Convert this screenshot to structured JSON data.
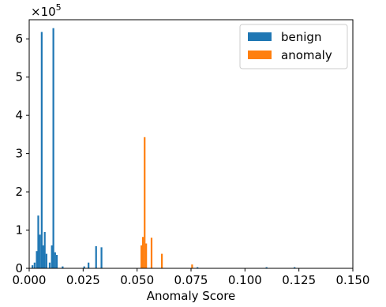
{
  "chart_data": {
    "type": "bar",
    "xlabel": "Anomaly Score",
    "ylabel": "",
    "xlim": [
      0.0,
      0.15
    ],
    "ylim": [
      0,
      650000
    ],
    "xticks": [
      0.0,
      0.025,
      0.05,
      0.075,
      0.1,
      0.125,
      0.15
    ],
    "xtick_labels": [
      "0.000",
      "0.025",
      "0.050",
      "0.075",
      "0.100",
      "0.125",
      "0.150"
    ],
    "yticks": [
      0,
      100000,
      200000,
      300000,
      400000,
      500000,
      600000
    ],
    "ytick_labels": [
      "0",
      "1",
      "2",
      "3",
      "4",
      "5",
      "6"
    ],
    "y_multiplier": "×10",
    "y_multiplier_exp": "5",
    "grid": false,
    "legend_position": "top-right",
    "series": [
      {
        "name": "benign",
        "color": "#1f77b4",
        "bins": [
          {
            "x": 0.0015,
            "y": 8000
          },
          {
            "x": 0.0025,
            "y": 15000
          },
          {
            "x": 0.0035,
            "y": 45000
          },
          {
            "x": 0.0042,
            "y": 138000
          },
          {
            "x": 0.005,
            "y": 88000
          },
          {
            "x": 0.0058,
            "y": 618000
          },
          {
            "x": 0.0065,
            "y": 60000
          },
          {
            "x": 0.0072,
            "y": 95000
          },
          {
            "x": 0.008,
            "y": 38000
          },
          {
            "x": 0.0095,
            "y": 15000
          },
          {
            "x": 0.0105,
            "y": 60000
          },
          {
            "x": 0.0112,
            "y": 628000
          },
          {
            "x": 0.012,
            "y": 42000
          },
          {
            "x": 0.0128,
            "y": 35000
          },
          {
            "x": 0.0155,
            "y": 5000
          },
          {
            "x": 0.0255,
            "y": 5000
          },
          {
            "x": 0.0275,
            "y": 15000
          },
          {
            "x": 0.031,
            "y": 58000
          },
          {
            "x": 0.0335,
            "y": 55000
          },
          {
            "x": 0.078,
            "y": 3000
          },
          {
            "x": 0.11,
            "y": 3000
          },
          {
            "x": 0.123,
            "y": 3000
          }
        ]
      },
      {
        "name": "anomaly",
        "color": "#ff7f0e",
        "bins": [
          {
            "x": 0.052,
            "y": 60000
          },
          {
            "x": 0.0527,
            "y": 82000
          },
          {
            "x": 0.0535,
            "y": 343000
          },
          {
            "x": 0.0542,
            "y": 65000
          },
          {
            "x": 0.0567,
            "y": 80000
          },
          {
            "x": 0.0615,
            "y": 38000
          },
          {
            "x": 0.0755,
            "y": 10000
          }
        ]
      }
    ]
  }
}
